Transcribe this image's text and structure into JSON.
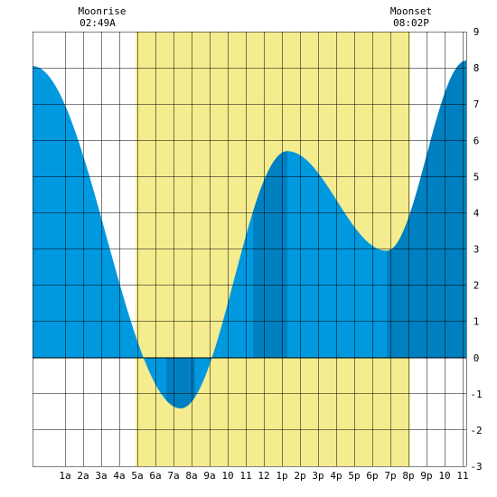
{
  "moon": {
    "moonrise_label": "Moonrise",
    "moonrise_time": "02:49A",
    "moonset_label": "Moonset",
    "moonset_time": "08:02P"
  },
  "chart_data": {
    "type": "area",
    "title": "",
    "xlabel": "",
    "ylabel": "",
    "x_unit": "hour of day",
    "xlim": [
      -0.8,
      23.2
    ],
    "ylim": [
      -3,
      9
    ],
    "y_ticks": [
      -3,
      -2,
      -1,
      0,
      1,
      2,
      3,
      4,
      5,
      6,
      7,
      8,
      9
    ],
    "y_tick_labels": [
      "-3",
      "-2",
      "-1",
      "0",
      "1",
      "2",
      "3",
      "4",
      "5",
      "6",
      "7",
      "8",
      "9"
    ],
    "x_ticks": [
      1,
      2,
      3,
      4,
      5,
      6,
      7,
      8,
      9,
      10,
      11,
      12,
      13,
      14,
      15,
      16,
      17,
      18,
      19,
      20,
      21,
      22,
      23
    ],
    "x_tick_labels": [
      "1a",
      "2a",
      "3a",
      "4a",
      "5a",
      "6a",
      "7a",
      "8a",
      "9a",
      "10",
      "11",
      "12",
      "1p",
      "2p",
      "3p",
      "4p",
      "5p",
      "6p",
      "7p",
      "8p",
      "9p",
      "10",
      "11"
    ],
    "grid": true,
    "daylight": {
      "start": 4.9,
      "end": 20.1,
      "color": "#f4ec8f"
    },
    "colors": {
      "tide_light": "#0099e0",
      "tide_dark": "#0080c0",
      "grid": "#000000"
    },
    "dark_bands": [
      [
        6.6,
        8.2
      ],
      [
        11.4,
        13.3
      ],
      [
        18.8,
        23.2
      ]
    ],
    "extremes": [
      {
        "type": "high",
        "time": -0.8,
        "height": 8.05
      },
      {
        "type": "low",
        "time": 7.4,
        "height": -1.4
      },
      {
        "type": "high",
        "time": 13.3,
        "height": 5.7
      },
      {
        "type": "low",
        "time": 18.8,
        "height": 2.95
      },
      {
        "type": "high",
        "time": 23.2,
        "height": 8.2
      }
    ]
  }
}
